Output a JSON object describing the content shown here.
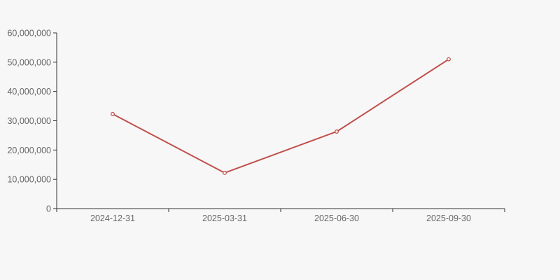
{
  "page": {
    "background_color": "#f7f7f7"
  },
  "chart_data": {
    "type": "line",
    "title": "",
    "xlabel": "",
    "ylabel": "",
    "categories": [
      "2024-12-31",
      "2025-03-31",
      "2025-06-30",
      "2025-09-30"
    ],
    "values": [
      32300000,
      12200000,
      26300000,
      51000000
    ],
    "ylim": [
      0,
      60000000
    ],
    "ytick_interval": 10000000,
    "y_tick_labels": [
      "0",
      "10,000,000",
      "20,000,000",
      "30,000,000",
      "40,000,000",
      "50,000,000",
      "60,000,000"
    ],
    "grid": false,
    "legend": null,
    "line_color": "#c0504d",
    "marker_style": "open-circle",
    "marker_fill": "#ffffff",
    "axis_color": "#333333",
    "label_color": "#666666",
    "background": "#f7f7f7"
  }
}
